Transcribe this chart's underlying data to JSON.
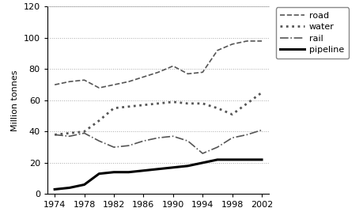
{
  "years": [
    1974,
    1976,
    1978,
    1980,
    1982,
    1984,
    1986,
    1988,
    1990,
    1992,
    1994,
    1996,
    1998,
    2000,
    2002
  ],
  "road": [
    70,
    72,
    73,
    68,
    70,
    72,
    75,
    78,
    82,
    77,
    78,
    92,
    96,
    98,
    98
  ],
  "water": [
    38,
    39,
    40,
    47,
    55,
    56,
    57,
    58,
    59,
    58,
    58,
    55,
    51,
    58,
    65
  ],
  "rail": [
    38,
    37,
    39,
    34,
    30,
    31,
    34,
    36,
    37,
    34,
    26,
    30,
    36,
    38,
    41
  ],
  "pipeline": [
    3,
    4,
    6,
    13,
    14,
    14,
    15,
    16,
    17,
    18,
    20,
    22,
    22,
    22,
    22
  ],
  "ylabel": "Million tonnes",
  "ylim": [
    0,
    120
  ],
  "yticks": [
    0,
    20,
    40,
    60,
    80,
    100,
    120
  ],
  "xticks": [
    1974,
    1978,
    1982,
    1986,
    1990,
    1994,
    1998,
    2002
  ],
  "xlim": [
    1973,
    2003
  ],
  "grid_color": "#aaaaaa",
  "legend_labels": [
    "road",
    "water",
    "rail",
    "pipeline"
  ],
  "road_style": {
    "linestyle": "--",
    "linewidth": 1.2,
    "color": "#555555",
    "dashes": [
      6,
      3
    ]
  },
  "water_style": {
    "linestyle": ":",
    "linewidth": 2.0,
    "color": "#555555"
  },
  "rail_style": {
    "linestyle": "-.",
    "linewidth": 1.2,
    "color": "#555555"
  },
  "pipeline_style": {
    "linestyle": "-",
    "linewidth": 2.2,
    "color": "#000000"
  }
}
